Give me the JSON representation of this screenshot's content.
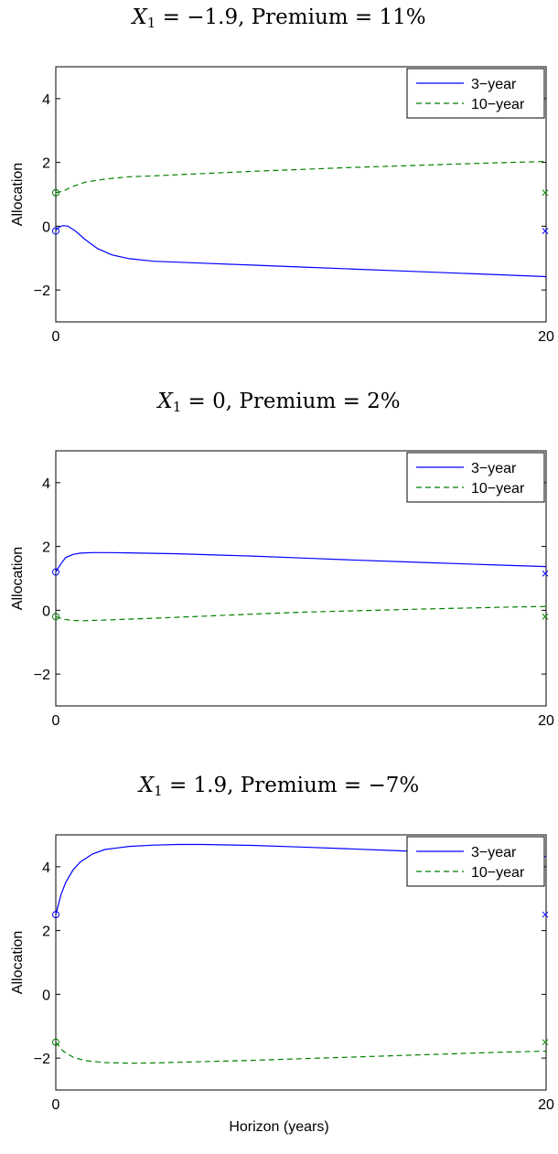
{
  "chart_data": [
    {
      "type": "line",
      "title": {
        "var": "X",
        "sub": "1",
        "text": " = −1.9,   Premium = 11%"
      },
      "xlabel": "",
      "ylabel": "Allocation",
      "xlim": [
        0,
        20
      ],
      "ylim": [
        -3,
        5
      ],
      "xticks": [
        "0",
        "20"
      ],
      "yticks": [
        "4",
        "2",
        "0",
        "−2"
      ],
      "ytick_values": [
        4,
        2,
        0,
        -2
      ],
      "grid": false,
      "legend_position": "top-right",
      "series": [
        {
          "name": "3−year",
          "color": "#0000ff",
          "style": "solid",
          "x": [
            0,
            0.15,
            0.3,
            0.5,
            0.8,
            1.2,
            1.7,
            2.3,
            3,
            4,
            6,
            8,
            10,
            12,
            14,
            16,
            18,
            20
          ],
          "y": [
            -0.12,
            -0.02,
            0.02,
            0.0,
            -0.15,
            -0.42,
            -0.7,
            -0.9,
            -1.02,
            -1.1,
            -1.16,
            -1.22,
            -1.28,
            -1.34,
            -1.4,
            -1.46,
            -1.52,
            -1.58
          ],
          "start_marker": {
            "x": 0,
            "y": -0.15,
            "symbol": "o"
          },
          "end_marker": {
            "x": 20,
            "y": -0.15,
            "symbol": "x"
          }
        },
        {
          "name": "10−year",
          "color": "#008000",
          "style": "dashed",
          "x": [
            0,
            0.3,
            0.7,
            1.2,
            2,
            3,
            4,
            6,
            8,
            10,
            12,
            14,
            16,
            18,
            20
          ],
          "y": [
            1.05,
            1.1,
            1.25,
            1.38,
            1.48,
            1.55,
            1.58,
            1.65,
            1.72,
            1.78,
            1.84,
            1.89,
            1.94,
            1.99,
            2.03
          ],
          "start_marker": {
            "x": 0,
            "y": 1.05,
            "symbol": "o"
          },
          "end_marker": {
            "x": 20,
            "y": 1.05,
            "symbol": "x"
          }
        }
      ]
    },
    {
      "type": "line",
      "title": {
        "var": "X",
        "sub": "1",
        "text": " = 0,   Premium = 2%"
      },
      "xlabel": "",
      "ylabel": "Allocation",
      "xlim": [
        0,
        20
      ],
      "ylim": [
        -3,
        5
      ],
      "xticks": [
        "0",
        "20"
      ],
      "yticks": [
        "4",
        "2",
        "0",
        "−2"
      ],
      "ytick_values": [
        4,
        2,
        0,
        -2
      ],
      "grid": false,
      "legend_position": "top-right",
      "series": [
        {
          "name": "3−year",
          "color": "#0000ff",
          "style": "solid",
          "x": [
            0,
            0.2,
            0.4,
            0.7,
            1,
            1.5,
            2,
            3,
            5,
            8,
            10,
            12,
            15,
            18,
            20
          ],
          "y": [
            1.2,
            1.45,
            1.65,
            1.75,
            1.79,
            1.81,
            1.81,
            1.8,
            1.77,
            1.7,
            1.64,
            1.58,
            1.5,
            1.42,
            1.37
          ],
          "start_marker": {
            "x": 0,
            "y": 1.2,
            "symbol": "o"
          },
          "end_marker": {
            "x": 20,
            "y": 1.15,
            "symbol": "x"
          }
        },
        {
          "name": "10−year",
          "color": "#008000",
          "style": "dashed",
          "x": [
            0,
            0.3,
            0.7,
            1,
            1.5,
            3,
            5,
            8,
            10,
            12,
            15,
            18,
            20
          ],
          "y": [
            -0.2,
            -0.28,
            -0.32,
            -0.33,
            -0.32,
            -0.28,
            -0.22,
            -0.12,
            -0.06,
            -0.02,
            0.04,
            0.09,
            0.12
          ],
          "start_marker": {
            "x": 0,
            "y": -0.2,
            "symbol": "o"
          },
          "end_marker": {
            "x": 20,
            "y": -0.2,
            "symbol": "x"
          }
        }
      ]
    },
    {
      "type": "line",
      "title": {
        "var": "X",
        "sub": "1",
        "text": " = 1.9,   Premium = −7%"
      },
      "xlabel": "Horizon (years)",
      "ylabel": "Allocation",
      "xlim": [
        0,
        20
      ],
      "ylim": [
        -3,
        5
      ],
      "xticks": [
        "0",
        "20"
      ],
      "yticks": [
        "4",
        "2",
        "0",
        "−2"
      ],
      "ytick_values": [
        4,
        2,
        0,
        -2
      ],
      "grid": false,
      "legend_position": "top-right",
      "series": [
        {
          "name": "3−year",
          "color": "#0000ff",
          "style": "solid",
          "x": [
            0,
            0.2,
            0.4,
            0.7,
            1,
            1.5,
            2,
            3,
            4,
            5,
            6,
            8,
            10,
            12,
            14,
            16,
            18,
            20
          ],
          "y": [
            2.5,
            3.1,
            3.5,
            3.9,
            4.15,
            4.4,
            4.54,
            4.64,
            4.68,
            4.7,
            4.7,
            4.67,
            4.62,
            4.56,
            4.5,
            4.44,
            4.38,
            4.32
          ],
          "start_marker": {
            "x": 0,
            "y": 2.5,
            "symbol": "o"
          },
          "end_marker": {
            "x": 20,
            "y": 2.5,
            "symbol": "x"
          }
        },
        {
          "name": "10−year",
          "color": "#008000",
          "style": "dashed",
          "x": [
            0,
            0.3,
            0.7,
            1.2,
            2,
            3,
            4,
            5,
            6,
            8,
            10,
            12,
            14,
            16,
            18,
            20
          ],
          "y": [
            -1.5,
            -1.78,
            -1.97,
            -2.08,
            -2.14,
            -2.16,
            -2.15,
            -2.13,
            -2.11,
            -2.07,
            -2.02,
            -1.97,
            -1.92,
            -1.87,
            -1.82,
            -1.78
          ],
          "start_marker": {
            "x": 0,
            "y": -1.5,
            "symbol": "o"
          },
          "end_marker": {
            "x": 20,
            "y": -1.5,
            "symbol": "x"
          }
        }
      ]
    }
  ]
}
